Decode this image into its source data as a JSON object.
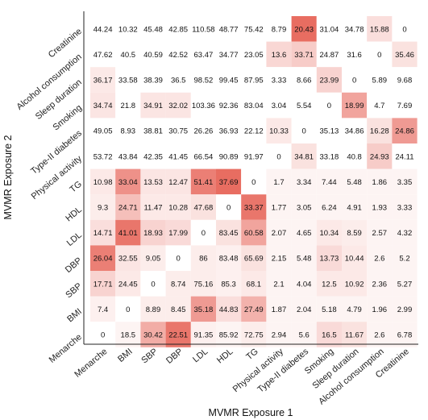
{
  "chart_data": {
    "type": "heatmap",
    "xlabel": "MVMR Exposure 1",
    "ylabel": "MVMR Exposure 2",
    "x_categories": [
      "Menarche",
      "BMI",
      "SBP",
      "DBP",
      "LDL",
      "HDL",
      "TG",
      "Physical activity",
      "Type-II diabetes",
      "Smoking",
      "Sleep duration",
      "Alcohol consumption",
      "Creatinine"
    ],
    "y_categories": [
      "Creatinine",
      "Alcohol consumption",
      "Sleep duration",
      "Smoking",
      "Type-II diabetes",
      "Physical activity",
      "TG",
      "HDL",
      "LDL",
      "DBP",
      "SBP",
      "BMI",
      "Menarche"
    ],
    "values": [
      [
        "44.24",
        "10.32",
        "45.48",
        "42.85",
        "110.58",
        "48.77",
        "75.42",
        "8.79",
        "20.43",
        "31.04",
        "34.78",
        "15.88",
        "0"
      ],
      [
        "47.62",
        "40.5",
        "40.59",
        "42.52",
        "63.47",
        "34.77",
        "23.05",
        "13.6",
        "33.71",
        "24.87",
        "31.6",
        "0",
        "35.46"
      ],
      [
        "36.17",
        "33.58",
        "38.39",
        "36.5",
        "98.52",
        "99.45",
        "87.95",
        "3.33",
        "8.66",
        "23.99",
        "0",
        "5.89",
        "9.68"
      ],
      [
        "34.74",
        "21.8",
        "34.91",
        "32.02",
        "103.36",
        "92.36",
        "83.04",
        "3.04",
        "5.54",
        "0",
        "18.99",
        "4.7",
        "7.69"
      ],
      [
        "49.05",
        "8.93",
        "38.81",
        "30.75",
        "26.26",
        "36.93",
        "22.12",
        "10.33",
        "0",
        "35.13",
        "34.86",
        "16.28",
        "24.86"
      ],
      [
        "53.72",
        "43.84",
        "42.35",
        "41.45",
        "66.54",
        "90.89",
        "91.97",
        "0",
        "34.81",
        "33.18",
        "40.8",
        "24.93",
        "24.11"
      ],
      [
        "10.98",
        "33.04",
        "13.53",
        "12.47",
        "51.41",
        "37.69",
        "0",
        "1.7",
        "3.34",
        "7.44",
        "5.48",
        "1.86",
        "3.35"
      ],
      [
        "9.3",
        "24.71",
        "11.47",
        "10.28",
        "47.68",
        "0",
        "33.37",
        "1.77",
        "3.05",
        "6.24",
        "4.91",
        "1.93",
        "3.33"
      ],
      [
        "14.71",
        "41.01",
        "18.93",
        "17.99",
        "0",
        "83.45",
        "60.58",
        "2.07",
        "4.65",
        "10.34",
        "8.59",
        "2.57",
        "4.32"
      ],
      [
        "26.04",
        "32.55",
        "9.05",
        "0",
        "86",
        "83.48",
        "65.69",
        "2.15",
        "5.48",
        "13.73",
        "10.44",
        "2.6",
        "5.2"
      ],
      [
        "17.71",
        "24.45",
        "0",
        "8.74",
        "75.16",
        "85.3",
        "68.1",
        "2.1",
        "4.04",
        "12.5",
        "10.92",
        "2.36",
        "5.27"
      ],
      [
        "7.4",
        "0",
        "8.89",
        "8.45",
        "35.18",
        "44.83",
        "27.49",
        "1.87",
        "2.04",
        "5.18",
        "4.79",
        "1.96",
        "2.99"
      ],
      [
        "0",
        "18.5",
        "30.42",
        "22.51",
        "91.35",
        "85.92",
        "72.75",
        "2.94",
        "5.6",
        "16.5",
        "11.67",
        "2.6",
        "6.78"
      ]
    ],
    "shading_intensity": [
      [
        0,
        0,
        0,
        0,
        0,
        0,
        0,
        0,
        0.8,
        0,
        0,
        0.18,
        0
      ],
      [
        0,
        0,
        0,
        0,
        0,
        0,
        0,
        0.22,
        0.28,
        0,
        0,
        0,
        0.16
      ],
      [
        0.12,
        0,
        0,
        0,
        0,
        0,
        0,
        0,
        0,
        0.24,
        0,
        0,
        0
      ],
      [
        0.14,
        0,
        0.14,
        0.14,
        0,
        0,
        0,
        0,
        0,
        0,
        0.5,
        0,
        0
      ],
      [
        0,
        0,
        0,
        0,
        0,
        0,
        0,
        0.12,
        0,
        0,
        0,
        0.16,
        0.55
      ],
      [
        0,
        0,
        0,
        0,
        0,
        0,
        0,
        0,
        0.16,
        0,
        0,
        0.28,
        0
      ],
      [
        0.12,
        0.6,
        0.14,
        0.14,
        0.7,
        0.8,
        0,
        0.06,
        0.06,
        0.06,
        0.06,
        0.06,
        0.06
      ],
      [
        0.1,
        0.35,
        0.12,
        0.12,
        0.16,
        0,
        0.75,
        0.06,
        0.06,
        0.06,
        0.06,
        0.06,
        0.06
      ],
      [
        0.18,
        0.75,
        0.24,
        0.2,
        0,
        0.16,
        0.5,
        0.06,
        0.06,
        0.12,
        0.1,
        0.06,
        0.06
      ],
      [
        0.7,
        0.14,
        0.1,
        0,
        0.1,
        0.08,
        0.16,
        0.06,
        0.06,
        0.2,
        0.12,
        0.06,
        0.06
      ],
      [
        0.24,
        0.12,
        0,
        0.1,
        0.1,
        0.08,
        0.12,
        0.06,
        0.06,
        0.12,
        0.12,
        0.06,
        0.06
      ],
      [
        0.08,
        0,
        0.1,
        0.1,
        0.55,
        0.18,
        0.42,
        0.06,
        0.06,
        0.06,
        0.06,
        0.06,
        0.06
      ],
      [
        0,
        0.06,
        0.45,
        0.75,
        0.08,
        0.06,
        0.1,
        0.06,
        0.06,
        0.2,
        0.16,
        0.06,
        0.06
      ]
    ],
    "colors": {
      "high": "#e2483a",
      "low": "#ffffff",
      "text": "#111111",
      "axis": "#222222"
    },
    "grid": false,
    "legend": "none"
  }
}
